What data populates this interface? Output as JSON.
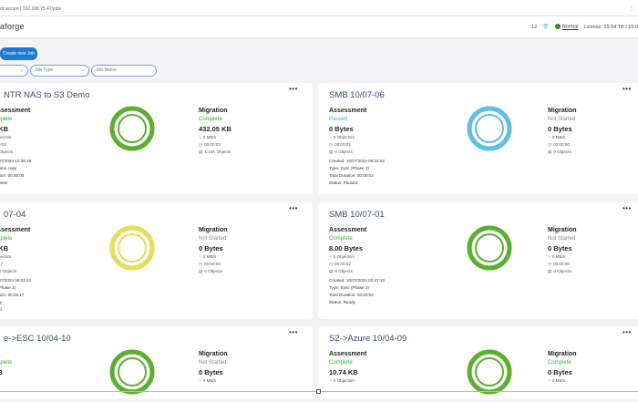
{
  "browser": {
    "url": "ot secure | 192.168.75.47/jobs",
    "ext_icon": "extension-icon"
  },
  "app": {
    "brand": "aforge",
    "badge_num": "12",
    "status_label": "Normal",
    "license_text": "License: 19.54 TB / 10.0"
  },
  "toolbar": {
    "create_label": "Create new Job"
  },
  "filters": [
    {
      "placeholder": ""
    },
    {
      "placeholder": "Job Type"
    },
    {
      "placeholder": "Job Name"
    }
  ],
  "cards": [
    {
      "title": "NTR NAS to S3 Demo",
      "ring_color": "#5bb030",
      "assessment": {
        "label": "Assessment",
        "status": "omplete",
        "size": "5 KB",
        "lines": [
          "bjects/s",
          "0:03",
          "Objects"
        ]
      },
      "migration": {
        "label": "Migration",
        "status": "Complete",
        "size": "432.05 KB",
        "lines": [
          "0 MB/s",
          "00:00:03",
          "1.14K Objects"
        ]
      },
      "meta": [
        "10/07/2024 12:38:16",
        "ne-time copy",
        "uration:  00:00:06",
        "omplete"
      ]
    },
    {
      "title": "SMB 10/07-06",
      "ring_color": "#5fbfe6",
      "assessment": {
        "label": "Assessment",
        "status": "Paused",
        "size": "0 Bytes",
        "lines": [
          "0 Objects/s",
          "00:00:02",
          "0 Objects"
        ]
      },
      "migration": {
        "label": "Migration",
        "status": "Not Started",
        "size": "0 Bytes",
        "lines": [
          "0 MB/s",
          "00:00:00",
          "0 Objects"
        ]
      },
      "meta": [
        "Created:  10/07/2024 09:34:52",
        "Type:  Sync (Phase 3)",
        "Total Duration:  00:00:02",
        "Status:  Paused"
      ]
    },
    {
      "title": "07-04",
      "ring_color": "#e8dc5a",
      "assessment": {
        "label": "Assessment",
        "status": "omplete",
        "size": "3 KB",
        "lines": [
          "bjects/s",
          "17",
          "K Objects"
        ]
      },
      "migration": {
        "label": "Migration",
        "status": "Not Started",
        "size": "0 Bytes",
        "lines": [
          "0 MB/s",
          "00:00:00",
          "0 Objects"
        ]
      },
      "meta": [
        "10/07/2024 08:02:42",
        "n: (Phase 3)",
        "uration:  00:03:17",
        "eady",
        "ssed"
      ]
    },
    {
      "title": "SMB 10/07-01",
      "ring_color": "#5bb030",
      "assessment": {
        "label": "Assessment",
        "status": "Complete",
        "size": "8.00 Bytes",
        "lines": [
          "0 Objects/s",
          "00:00:02",
          "8 Objects"
        ]
      },
      "migration": {
        "label": "Migration",
        "status": "Not Started",
        "size": "0 Bytes",
        "lines": [
          "0 MB/s",
          "00:00:00",
          "0 Objects"
        ]
      },
      "meta": [
        "Created:  10/07/2024 02:47:16",
        "Type:  Sync (Phase 3)",
        "Total Duration:  00:00:02",
        "Status:  Ready"
      ]
    },
    {
      "title": "e->ESC 10/04-10",
      "ring_color": "#5bb030",
      "assessment": {
        "label": "",
        "status": "omplete",
        "size": "KB",
        "lines": []
      },
      "migration": {
        "label": "Migration",
        "status": "Not Started",
        "size": "0 Bytes",
        "lines": [
          "0 MB/s"
        ]
      },
      "meta": []
    },
    {
      "title": "S2->Azure 10/04-09",
      "ring_color": "#5bb030",
      "assessment": {
        "label": "Assessment",
        "status": "Complete",
        "size": "10.74 KB",
        "lines": [
          "0 Objects/s"
        ]
      },
      "migration": {
        "label": "Migration",
        "status": "Complete",
        "size": "0 Bytes",
        "lines": [
          "0 MB/s"
        ]
      },
      "meta": []
    }
  ]
}
